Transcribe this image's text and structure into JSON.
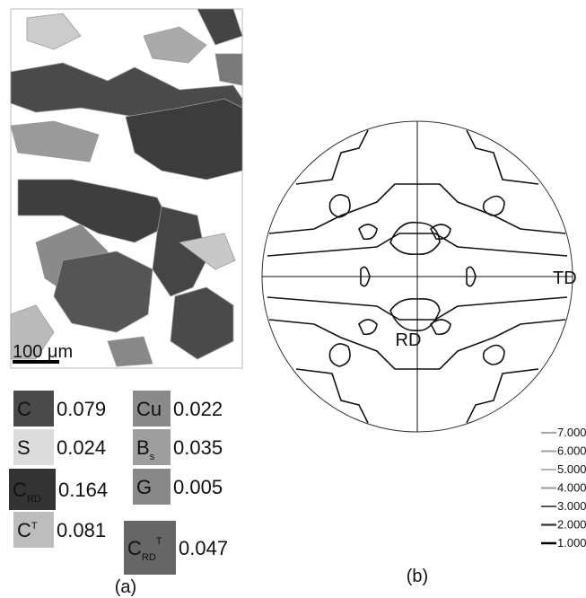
{
  "figure": {
    "scale_bar": "100 μm",
    "orientations": [
      {
        "base": "C",
        "value": "0.079"
      },
      {
        "base": "Cu",
        "value": "0.022"
      },
      {
        "base": "S",
        "value": "0.024"
      },
      {
        "base": "B",
        "sub": "s",
        "value": "0.035"
      },
      {
        "base": "C",
        "sub": "RD",
        "value": "0.164"
      },
      {
        "base": "G",
        "value": "0.005"
      },
      {
        "base": "C",
        "sup": "T",
        "value": "0.081"
      },
      {
        "base": "C",
        "sub": "RD",
        "sup": "T",
        "value": "0.047"
      }
    ],
    "panel_a_label": "(a)",
    "panel_b_label": "(b)",
    "axis_right": "TD",
    "axis_bottom": "RD",
    "contour_levels": [
      "7.000",
      "6.000",
      "5.000",
      "4.000",
      "3.000",
      "2.000",
      "1.000"
    ]
  }
}
